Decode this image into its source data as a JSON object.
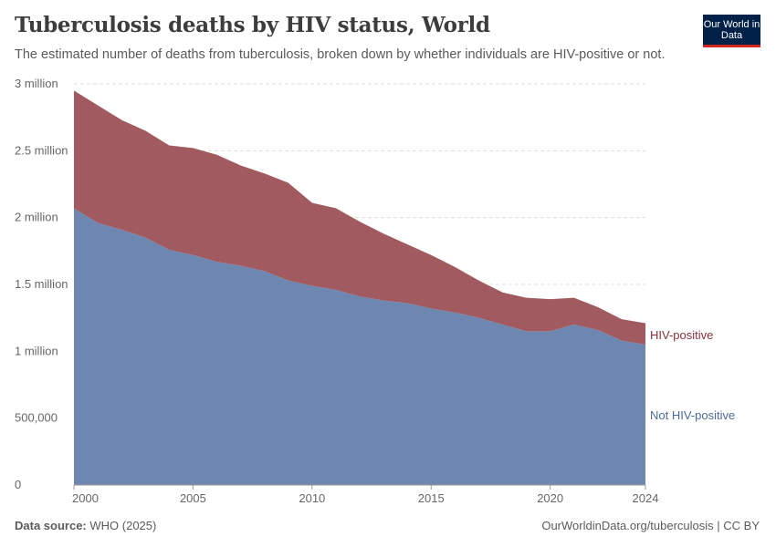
{
  "header": {
    "title": "Tuberculosis deaths by HIV status, World",
    "subtitle": "The estimated number of deaths from tuberculosis, broken down by whether individuals are HIV-positive or not.",
    "logo": "Our World in Data"
  },
  "footer": {
    "source_label": "Data source:",
    "source": "WHO (2025)",
    "url": "OurWorldinData.org/tuberculosis | CC BY"
  },
  "chart_data": {
    "type": "area",
    "stacked": true,
    "x": [
      2000,
      2001,
      2002,
      2003,
      2004,
      2005,
      2006,
      2007,
      2008,
      2009,
      2010,
      2011,
      2012,
      2013,
      2014,
      2015,
      2016,
      2017,
      2018,
      2019,
      2020,
      2021,
      2022,
      2023,
      2024
    ],
    "series": [
      {
        "name": "Not HIV-positive",
        "color": "#6d87b0",
        "label_color": "#4c6a9c",
        "values": [
          2070000,
          1960000,
          1910000,
          1850000,
          1760000,
          1720000,
          1670000,
          1640000,
          1600000,
          1530000,
          1490000,
          1460000,
          1410000,
          1380000,
          1360000,
          1320000,
          1290000,
          1250000,
          1200000,
          1150000,
          1150000,
          1200000,
          1160000,
          1080000,
          1050000
        ]
      },
      {
        "name": "HIV-positive",
        "color": "#a05a60",
        "label_color": "#883039",
        "values": [
          880000,
          880000,
          820000,
          800000,
          780000,
          800000,
          800000,
          750000,
          730000,
          730000,
          620000,
          610000,
          560000,
          500000,
          440000,
          400000,
          340000,
          280000,
          240000,
          250000,
          240000,
          200000,
          170000,
          160000,
          160000
        ]
      }
    ],
    "ylim": [
      0,
      3000000
    ],
    "yticks": [
      {
        "v": 0,
        "label": "0"
      },
      {
        "v": 500000,
        "label": "500,000"
      },
      {
        "v": 1000000,
        "label": "1 million"
      },
      {
        "v": 1500000,
        "label": "1.5 million"
      },
      {
        "v": 2000000,
        "label": "2 million"
      },
      {
        "v": 2500000,
        "label": "2.5 million"
      },
      {
        "v": 3000000,
        "label": "3 million"
      }
    ],
    "xticks": [
      {
        "v": 2000,
        "label": "2000"
      },
      {
        "v": 2005,
        "label": "2005"
      },
      {
        "v": 2010,
        "label": "2010"
      },
      {
        "v": 2015,
        "label": "2015"
      },
      {
        "v": 2020,
        "label": "2020"
      },
      {
        "v": 2024,
        "label": "2024"
      }
    ],
    "grid": true,
    "legend": "inline-right"
  }
}
